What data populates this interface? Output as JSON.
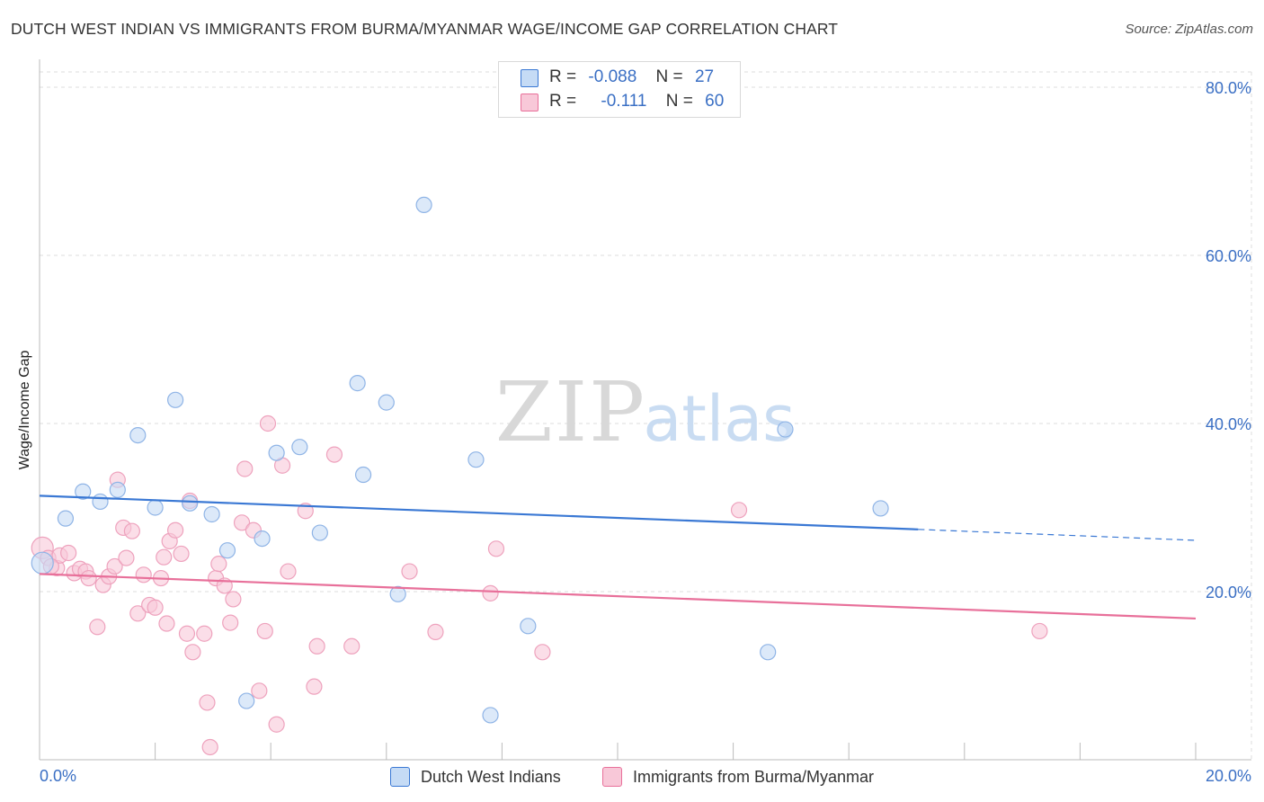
{
  "title": "DUTCH WEST INDIAN VS IMMIGRANTS FROM BURMA/MYANMAR WAGE/INCOME GAP CORRELATION CHART",
  "source": "Source: ZipAtlas.com",
  "watermark": {
    "zip": "ZIP",
    "atlas": "atlas"
  },
  "colors": {
    "blue": "#3a78d4",
    "blue_fill": "#c5dbf5",
    "pink": "#e8709a",
    "pink_fill": "#f8c8d8",
    "axis_text": "#3a6fc4",
    "grid": "#dddddd"
  },
  "legend": {
    "rows": [
      {
        "r_label": "R =",
        "r_value": "-0.088",
        "n_label": "N =",
        "n_value": "27"
      },
      {
        "r_label": "R =",
        "r_value": "-0.111",
        "n_label": "N =",
        "n_value": "60"
      }
    ]
  },
  "bottom_legend": [
    "Dutch West Indians",
    "Immigrants from Burma/Myanmar"
  ],
  "chart_data": {
    "type": "scatter",
    "title": "DUTCH WEST INDIAN VS IMMIGRANTS FROM BURMA/MYANMAR WAGE/INCOME GAP CORRELATION CHART",
    "xlabel": "",
    "ylabel": "Wage/Income Gap",
    "xlim": [
      0,
      20
    ],
    "ylim": [
      0,
      80
    ],
    "x_tick_labels": [
      {
        "value": 0,
        "label": "0.0%"
      },
      {
        "value": 20,
        "label": "20.0%"
      }
    ],
    "y_tick_labels": [
      {
        "value": 20,
        "label": "20.0%"
      },
      {
        "value": 40,
        "label": "40.0%"
      },
      {
        "value": 60,
        "label": "60.0%"
      },
      {
        "value": 80,
        "label": "80.0%"
      }
    ],
    "x_minor_ticks": [
      0,
      2,
      4,
      6,
      8,
      10,
      12,
      14,
      16,
      18,
      20
    ],
    "grid": true,
    "series": [
      {
        "name": "Dutch West Indians",
        "color": "#3a78d4",
        "r": -0.088,
        "n": 27,
        "trend": {
          "x0": 0,
          "y0": 31.4,
          "x1": 15.2,
          "y1": 27.4,
          "dash_to_x": 20,
          "dash_to_y": 26.1
        },
        "points": [
          [
            0.05,
            23.4
          ],
          [
            0.45,
            28.7
          ],
          [
            0.75,
            31.9
          ],
          [
            1.05,
            30.7
          ],
          [
            1.35,
            32.1
          ],
          [
            1.7,
            38.6
          ],
          [
            2.0,
            30.0
          ],
          [
            2.35,
            42.8
          ],
          [
            2.6,
            30.5
          ],
          [
            2.98,
            29.2
          ],
          [
            3.25,
            24.9
          ],
          [
            3.85,
            26.3
          ],
          [
            4.1,
            36.5
          ],
          [
            4.5,
            37.2
          ],
          [
            4.85,
            27.0
          ],
          [
            5.5,
            44.8
          ],
          [
            5.6,
            33.9
          ],
          [
            6.0,
            42.5
          ],
          [
            6.2,
            19.7
          ],
          [
            6.65,
            66.0
          ],
          [
            7.55,
            35.7
          ],
          [
            7.8,
            5.3
          ],
          [
            8.45,
            15.9
          ],
          [
            3.58,
            7.0
          ],
          [
            12.6,
            12.8
          ],
          [
            12.9,
            39.3
          ],
          [
            14.55,
            29.9
          ]
        ]
      },
      {
        "name": "Immigrants from Burma/Myanmar",
        "color": "#e8709a",
        "r": -0.111,
        "n": 60,
        "trend": {
          "x0": 0,
          "y0": 22.1,
          "x1": 20,
          "y1": 16.8
        },
        "points": [
          [
            0.05,
            25.2
          ],
          [
            0.15,
            24.0
          ],
          [
            0.3,
            22.8
          ],
          [
            0.35,
            24.3
          ],
          [
            0.5,
            24.6
          ],
          [
            0.6,
            22.2
          ],
          [
            0.7,
            22.7
          ],
          [
            0.8,
            22.4
          ],
          [
            0.85,
            21.6
          ],
          [
            1.0,
            15.8
          ],
          [
            1.1,
            20.8
          ],
          [
            1.2,
            21.8
          ],
          [
            1.3,
            23.0
          ],
          [
            1.35,
            33.3
          ],
          [
            1.45,
            27.6
          ],
          [
            1.5,
            24.0
          ],
          [
            1.6,
            27.2
          ],
          [
            1.7,
            17.4
          ],
          [
            1.8,
            22.0
          ],
          [
            1.9,
            18.4
          ],
          [
            2.0,
            18.1
          ],
          [
            2.1,
            21.6
          ],
          [
            2.15,
            24.1
          ],
          [
            2.25,
            26.0
          ],
          [
            2.35,
            27.3
          ],
          [
            2.45,
            24.5
          ],
          [
            2.55,
            15.0
          ],
          [
            2.6,
            30.8
          ],
          [
            2.65,
            12.8
          ],
          [
            2.85,
            15.0
          ],
          [
            2.9,
            6.8
          ],
          [
            2.95,
            1.5
          ],
          [
            3.05,
            21.6
          ],
          [
            3.1,
            23.3
          ],
          [
            3.2,
            20.7
          ],
          [
            3.3,
            16.3
          ],
          [
            3.35,
            19.1
          ],
          [
            3.5,
            28.2
          ],
          [
            3.55,
            34.6
          ],
          [
            3.7,
            27.3
          ],
          [
            3.8,
            8.2
          ],
          [
            3.9,
            15.3
          ],
          [
            3.95,
            40.0
          ],
          [
            4.1,
            4.2
          ],
          [
            4.2,
            35.0
          ],
          [
            4.3,
            22.4
          ],
          [
            4.6,
            29.6
          ],
          [
            4.75,
            8.7
          ],
          [
            4.8,
            13.5
          ],
          [
            5.1,
            36.3
          ],
          [
            5.4,
            13.5
          ],
          [
            6.4,
            22.4
          ],
          [
            6.85,
            15.2
          ],
          [
            7.8,
            19.8
          ],
          [
            7.9,
            25.1
          ],
          [
            8.7,
            12.8
          ],
          [
            12.1,
            29.7
          ],
          [
            17.3,
            15.3
          ],
          [
            0.2,
            23.0
          ],
          [
            2.2,
            16.2
          ]
        ]
      }
    ]
  }
}
